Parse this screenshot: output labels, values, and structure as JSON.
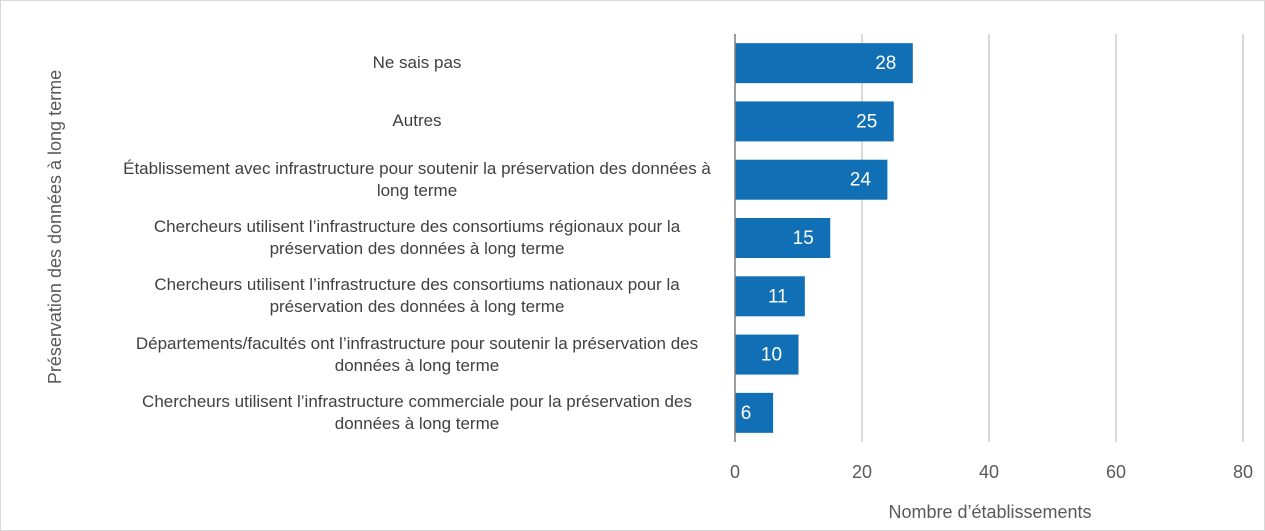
{
  "chart_data": {
    "type": "bar",
    "orientation": "horizontal",
    "y_axis_label": "Préservation des données à long terme",
    "x_axis_label": "Nombre d’établissements",
    "categories": [
      "Ne sais pas",
      "Autres",
      "Établissement avec infrastructure pour soutenir la préservation des données à long terme",
      "Chercheurs utilisent l’infrastructure des consortiums régionaux pour la préservation des données à long terme",
      "Chercheurs utilisent l’infrastructure des consortiums nationaux pour la préservation des données à long terme",
      "Départements/facultés ont l’infrastructure pour soutenir la préservation des données à long terme",
      "Chercheurs utilisent l’infrastructure commerciale pour la préservation des données à long terme"
    ],
    "values": [
      28,
      25,
      24,
      15,
      11,
      10,
      6
    ],
    "color": "#1170b5",
    "xlim": [
      0,
      80
    ],
    "xticks": [
      0,
      20,
      40,
      60,
      80
    ],
    "grid": true
  }
}
